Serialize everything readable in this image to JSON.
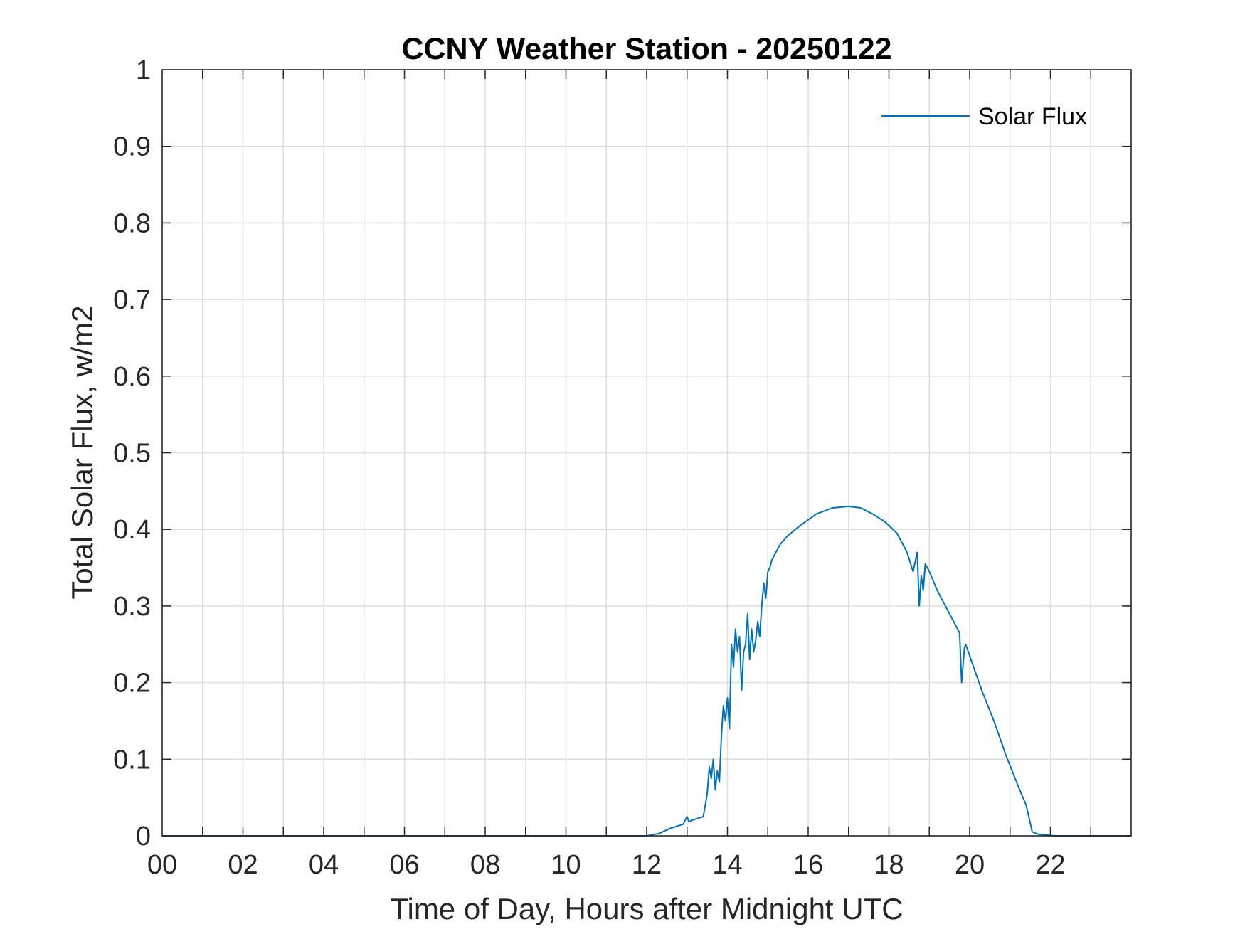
{
  "chart_data": {
    "type": "line",
    "title": "CCNY Weather Station - 20250122",
    "xlabel": "Time of Day, Hours after Midnight UTC",
    "ylabel": "Total Solar Flux, w/m2",
    "xlim": [
      0,
      24
    ],
    "ylim": [
      0,
      1
    ],
    "xticks": [
      0,
      2,
      4,
      6,
      8,
      10,
      12,
      14,
      16,
      18,
      20,
      22
    ],
    "xtick_labels": [
      "00",
      "02",
      "04",
      "06",
      "08",
      "10",
      "12",
      "14",
      "16",
      "18",
      "20",
      "22"
    ],
    "yticks": [
      0,
      0.1,
      0.2,
      0.3,
      0.4,
      0.5,
      0.6,
      0.7,
      0.8,
      0.9,
      1
    ],
    "ytick_labels": [
      "0",
      "0.1",
      "0.2",
      "0.3",
      "0.4",
      "0.5",
      "0.6",
      "0.7",
      "0.8",
      "0.9",
      "1"
    ],
    "grid": true,
    "legend_position": "top-right",
    "line_color": "#0072BD",
    "series": [
      {
        "name": "Solar Flux",
        "x": [
          0,
          12.0,
          12.3,
          12.6,
          12.9,
          13.0,
          13.05,
          13.1,
          13.4,
          13.5,
          13.55,
          13.6,
          13.65,
          13.7,
          13.75,
          13.8,
          13.85,
          13.9,
          13.95,
          14.0,
          14.05,
          14.1,
          14.15,
          14.2,
          14.25,
          14.3,
          14.35,
          14.4,
          14.45,
          14.5,
          14.55,
          14.6,
          14.65,
          14.7,
          14.75,
          14.8,
          14.85,
          14.9,
          14.95,
          15.0,
          15.05,
          15.1,
          15.15,
          15.2,
          15.3,
          15.5,
          15.8,
          16.2,
          16.6,
          17.0,
          17.3,
          17.6,
          17.9,
          18.2,
          18.45,
          18.6,
          18.7,
          18.75,
          18.8,
          18.85,
          18.9,
          18.95,
          19.0,
          19.2,
          19.5,
          19.75,
          19.8,
          19.83,
          19.87,
          19.9,
          20.0,
          20.3,
          20.6,
          20.9,
          21.2,
          21.4,
          21.55,
          21.7,
          21.9,
          22.1,
          22.4,
          23.0,
          23.99
        ],
        "y": [
          0,
          0,
          0.003,
          0.01,
          0.015,
          0.025,
          0.018,
          0.02,
          0.025,
          0.055,
          0.09,
          0.075,
          0.1,
          0.06,
          0.085,
          0.07,
          0.13,
          0.17,
          0.15,
          0.18,
          0.14,
          0.25,
          0.22,
          0.27,
          0.24,
          0.26,
          0.19,
          0.24,
          0.25,
          0.29,
          0.23,
          0.27,
          0.24,
          0.255,
          0.28,
          0.26,
          0.3,
          0.33,
          0.31,
          0.345,
          0.35,
          0.36,
          0.365,
          0.37,
          0.38,
          0.392,
          0.405,
          0.42,
          0.428,
          0.43,
          0.428,
          0.42,
          0.41,
          0.395,
          0.37,
          0.345,
          0.37,
          0.3,
          0.34,
          0.32,
          0.355,
          0.35,
          0.345,
          0.32,
          0.29,
          0.265,
          0.2,
          0.22,
          0.245,
          0.25,
          0.235,
          0.19,
          0.15,
          0.105,
          0.065,
          0.04,
          0.005,
          0.002,
          0.001,
          0,
          0,
          0,
          0
        ]
      }
    ]
  }
}
